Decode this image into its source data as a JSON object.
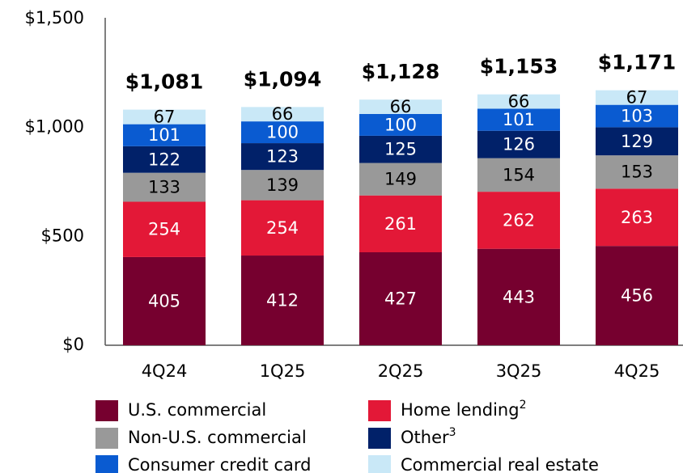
{
  "chart_data": {
    "type": "stacked_bar",
    "categories": [
      "4Q24",
      "1Q25",
      "2Q25",
      "3Q25",
      "4Q25"
    ],
    "series": [
      {
        "name": "U.S. commercial",
        "color": "#76002f",
        "label_color": "#ffffff",
        "values": [
          405,
          412,
          427,
          443,
          456
        ]
      },
      {
        "name": "Home lending",
        "note": "2",
        "color": "#e31837",
        "label_color": "#ffffff",
        "values": [
          254,
          254,
          261,
          262,
          263
        ]
      },
      {
        "name": "Non-U.S. commercial",
        "color": "#999999",
        "label_color": "#000000",
        "values": [
          133,
          139,
          149,
          154,
          153
        ]
      },
      {
        "name": "Other",
        "note": "3",
        "color": "#012169",
        "label_color": "#ffffff",
        "values": [
          122,
          123,
          125,
          126,
          129
        ]
      },
      {
        "name": "Consumer credit card",
        "color": "#0a5bd1",
        "label_color": "#ffffff",
        "values": [
          101,
          100,
          100,
          101,
          103
        ]
      },
      {
        "name": "Commercial real estate",
        "color": "#c9e8f7",
        "label_color": "#000000",
        "values": [
          67,
          66,
          66,
          66,
          67
        ]
      }
    ],
    "totals": {
      "values": [
        1081,
        1094,
        1128,
        1153,
        1171
      ],
      "value_labels": [
        "$1,081",
        "$1,094",
        "$1,128",
        "$1,153",
        "$1,171"
      ]
    },
    "ylim": [
      0,
      1500
    ],
    "yticks": [
      {
        "value": 0,
        "label": "$0"
      },
      {
        "value": 500,
        "label": "$500"
      },
      {
        "value": 1000,
        "label": "$1,000"
      },
      {
        "value": 1500,
        "label": "$1,500"
      }
    ],
    "grid": false
  }
}
